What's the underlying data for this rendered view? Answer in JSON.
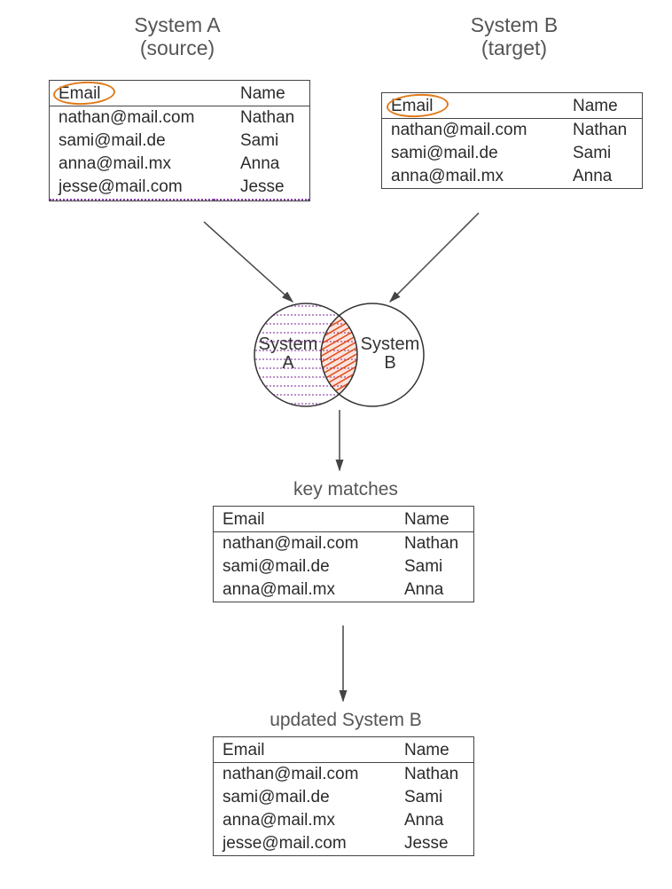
{
  "diagram": {
    "type": "flowchart",
    "font_family": "handwriting",
    "line_color": "#444444",
    "text_color": "#555555",
    "background": "#ffffff",
    "highlight_ellipse_color": "#e07a1b",
    "dotted_underline_color": "#8a3fa8",
    "venn_overlap_fill": "#e24a1a"
  },
  "systemA": {
    "title": "System A\n(source)",
    "columns": [
      "Email",
      "Name"
    ],
    "rows": [
      [
        "nathan@mail.com",
        "Nathan"
      ],
      [
        "sami@mail.de",
        "Sami"
      ],
      [
        "anna@mail.mx",
        "Anna"
      ],
      [
        "jesse@mail.com",
        "Jesse"
      ]
    ],
    "key_column_circled": true,
    "last_row_dotted_underline": true
  },
  "systemB": {
    "title": "System B\n(target)",
    "columns": [
      "Email",
      "Name"
    ],
    "rows": [
      [
        "nathan@mail.com",
        "Nathan"
      ],
      [
        "sami@mail.de",
        "Sami"
      ],
      [
        "anna@mail.mx",
        "Anna"
      ]
    ],
    "key_column_circled": true
  },
  "venn": {
    "left_label": "System\nA",
    "right_label": "System\nB",
    "left_pattern": "dotted-purple-lines",
    "overlap_fill_color": "#e24a1a"
  },
  "keyMatches": {
    "label": "key matches",
    "columns": [
      "Email",
      "Name"
    ],
    "rows": [
      [
        "nathan@mail.com",
        "Nathan"
      ],
      [
        "sami@mail.de",
        "Sami"
      ],
      [
        "anna@mail.mx",
        "Anna"
      ]
    ]
  },
  "updatedB": {
    "label": "updated System B",
    "columns": [
      "Email",
      "Name"
    ],
    "rows": [
      [
        "nathan@mail.com",
        "Nathan"
      ],
      [
        "sami@mail.de",
        "Sami"
      ],
      [
        "anna@mail.mx",
        "Anna"
      ],
      [
        "jesse@mail.com",
        "Jesse"
      ]
    ]
  },
  "arrows": [
    {
      "from": "systemA-table",
      "to": "venn-left"
    },
    {
      "from": "systemB-table",
      "to": "venn-right"
    },
    {
      "from": "venn-center",
      "to": "keyMatches-table"
    },
    {
      "from": "keyMatches-table",
      "to": "updatedB-table"
    }
  ]
}
